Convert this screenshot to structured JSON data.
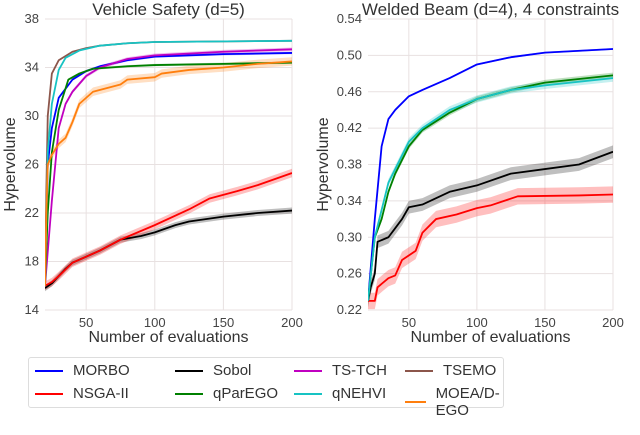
{
  "chart_data": [
    {
      "type": "line",
      "title": "Vehicle Safety (d=5)",
      "xlabel": "Number of evaluations",
      "ylabel": "Hypervolume",
      "xlim": [
        20,
        200
      ],
      "ylim": [
        14,
        38
      ],
      "xticks": [
        50,
        100,
        150,
        200
      ],
      "yticks": [
        14,
        18,
        22,
        26,
        30,
        34,
        38
      ],
      "grid": true,
      "series": [
        {
          "name": "MORBO",
          "band": 0.1,
          "points": [
            [
              20,
              16
            ],
            [
              22,
              26
            ],
            [
              25,
              29
            ],
            [
              30,
              31.5
            ],
            [
              40,
              33
            ],
            [
              50,
              33.7
            ],
            [
              60,
              34.1
            ],
            [
              80,
              34.6
            ],
            [
              100,
              34.9
            ],
            [
              150,
              35.1
            ],
            [
              200,
              35.2
            ]
          ]
        },
        {
          "name": "Sobol",
          "band": 0.25,
          "points": [
            [
              20,
              15.8
            ],
            [
              25,
              16.2
            ],
            [
              30,
              16.8
            ],
            [
              35,
              17.4
            ],
            [
              40,
              17.9
            ],
            [
              50,
              18.4
            ],
            [
              60,
              18.9
            ],
            [
              75,
              19.8
            ],
            [
              90,
              20.1
            ],
            [
              100,
              20.4
            ],
            [
              115,
              21
            ],
            [
              125,
              21.3
            ],
            [
              150,
              21.7
            ],
            [
              175,
              22
            ],
            [
              200,
              22.2
            ]
          ]
        },
        {
          "name": "TS-TCH",
          "band": 0.15,
          "points": [
            [
              20,
              16
            ],
            [
              25,
              23
            ],
            [
              30,
              29
            ],
            [
              35,
              31
            ],
            [
              40,
              32
            ],
            [
              50,
              33.3
            ],
            [
              60,
              34
            ],
            [
              80,
              34.7
            ],
            [
              100,
              35
            ],
            [
              150,
              35.3
            ],
            [
              200,
              35.5
            ]
          ]
        },
        {
          "name": "TSEMO",
          "band": 0.05,
          "points": [
            [
              20,
              16
            ],
            [
              21,
              24
            ],
            [
              22,
              30
            ],
            [
              25,
              33.5
            ],
            [
              30,
              34.6
            ],
            [
              40,
              35.3
            ],
            [
              50,
              35.6
            ],
            [
              60,
              35.8
            ],
            [
              80,
              36
            ],
            [
              100,
              36.1
            ],
            [
              200,
              36.2
            ]
          ]
        },
        {
          "name": "NSGA-II",
          "band": 0.35,
          "points": [
            [
              20,
              16
            ],
            [
              25,
              16.3
            ],
            [
              30,
              16.8
            ],
            [
              40,
              17.9
            ],
            [
              50,
              18.4
            ],
            [
              60,
              18.9
            ],
            [
              75,
              19.8
            ],
            [
              100,
              21
            ],
            [
              125,
              22.3
            ],
            [
              140,
              23.2
            ],
            [
              160,
              23.8
            ],
            [
              175,
              24.3
            ],
            [
              200,
              25.3
            ]
          ]
        },
        {
          "name": "qParEGO",
          "band": 0.1,
          "points": [
            [
              20,
              16
            ],
            [
              22,
              22
            ],
            [
              25,
              27
            ],
            [
              30,
              30.5
            ],
            [
              37,
              33
            ],
            [
              45,
              33.5
            ],
            [
              55,
              33.9
            ],
            [
              80,
              34.1
            ],
            [
              100,
              34.2
            ],
            [
              150,
              34.3
            ],
            [
              200,
              34.4
            ]
          ]
        },
        {
          "name": "qNEHVI",
          "band": 0.05,
          "points": [
            [
              20,
              16
            ],
            [
              22,
              27
            ],
            [
              25,
              31
            ],
            [
              30,
              33.8
            ],
            [
              35,
              34.8
            ],
            [
              45,
              35.4
            ],
            [
              60,
              35.8
            ],
            [
              80,
              36
            ],
            [
              100,
              36.1
            ],
            [
              200,
              36.2
            ]
          ]
        },
        {
          "name": "MOEA/D-EGO",
          "band": 0.35,
          "points": [
            [
              20,
              16
            ],
            [
              21,
              22
            ],
            [
              22,
              26
            ],
            [
              25,
              26.8
            ],
            [
              30,
              27.7
            ],
            [
              35,
              28.2
            ],
            [
              40,
              29.5
            ],
            [
              45,
              31
            ],
            [
              55,
              32
            ],
            [
              65,
              32.3
            ],
            [
              75,
              32.6
            ],
            [
              80,
              33
            ],
            [
              100,
              33.2
            ],
            [
              105,
              33.5
            ],
            [
              125,
              33.8
            ],
            [
              150,
              34
            ],
            [
              175,
              34.3
            ],
            [
              200,
              34.5
            ]
          ]
        }
      ]
    },
    {
      "type": "line",
      "title": "Welded Beam (d=4), 4 constraints",
      "xlabel": "Number of evaluations",
      "ylabel": "Hypervolume",
      "xlim": [
        20,
        200
      ],
      "ylim": [
        0.22,
        0.54
      ],
      "xticks": [
        50,
        100,
        150,
        200
      ],
      "yticks": [
        0.22,
        0.26,
        0.3,
        0.34,
        0.38,
        0.42,
        0.46,
        0.5,
        0.54
      ],
      "grid": true,
      "series": [
        {
          "name": "MORBO",
          "band": 0.001,
          "points": [
            [
              20,
              0.23
            ],
            [
              25,
              0.32
            ],
            [
              30,
              0.4
            ],
            [
              35,
              0.43
            ],
            [
              40,
              0.44
            ],
            [
              50,
              0.455
            ],
            [
              60,
              0.462
            ],
            [
              80,
              0.475
            ],
            [
              100,
              0.49
            ],
            [
              125,
              0.498
            ],
            [
              150,
              0.503
            ],
            [
              200,
              0.507
            ]
          ]
        },
        {
          "name": "Sobol",
          "band": 0.007,
          "points": [
            [
              20,
              0.23
            ],
            [
              22,
              0.245
            ],
            [
              25,
              0.26
            ],
            [
              27,
              0.295
            ],
            [
              35,
              0.3
            ],
            [
              40,
              0.31
            ],
            [
              45,
              0.32
            ],
            [
              50,
              0.333
            ],
            [
              60,
              0.336
            ],
            [
              80,
              0.35
            ],
            [
              100,
              0.357
            ],
            [
              125,
              0.37
            ],
            [
              150,
              0.375
            ],
            [
              175,
              0.38
            ],
            [
              200,
              0.394
            ]
          ]
        },
        {
          "name": "NSGA-II",
          "band": 0.009,
          "points": [
            [
              20,
              0.23
            ],
            [
              25,
              0.23
            ],
            [
              27,
              0.245
            ],
            [
              35,
              0.255
            ],
            [
              40,
              0.258
            ],
            [
              45,
              0.275
            ],
            [
              55,
              0.285
            ],
            [
              60,
              0.305
            ],
            [
              70,
              0.32
            ],
            [
              85,
              0.325
            ],
            [
              100,
              0.332
            ],
            [
              110,
              0.335
            ],
            [
              130,
              0.345
            ],
            [
              175,
              0.346
            ],
            [
              200,
              0.347
            ]
          ]
        },
        {
          "name": "qParEGO",
          "band": 0.003,
          "points": [
            [
              20,
              0.23
            ],
            [
              25,
              0.3
            ],
            [
              30,
              0.32
            ],
            [
              35,
              0.35
            ],
            [
              40,
              0.37
            ],
            [
              50,
              0.4
            ],
            [
              60,
              0.418
            ],
            [
              80,
              0.437
            ],
            [
              100,
              0.452
            ],
            [
              125,
              0.462
            ],
            [
              150,
              0.47
            ],
            [
              200,
              0.478
            ]
          ]
        },
        {
          "name": "qNEHVI",
          "band": 0.004,
          "points": [
            [
              20,
              0.23
            ],
            [
              25,
              0.3
            ],
            [
              30,
              0.33
            ],
            [
              35,
              0.36
            ],
            [
              40,
              0.375
            ],
            [
              50,
              0.405
            ],
            [
              60,
              0.42
            ],
            [
              80,
              0.44
            ],
            [
              100,
              0.452
            ],
            [
              125,
              0.462
            ],
            [
              150,
              0.467
            ],
            [
              200,
              0.475
            ]
          ]
        }
      ]
    }
  ],
  "legend": {
    "placement": "bottom",
    "items": [
      {
        "name": "MORBO",
        "color": "#0000ff"
      },
      {
        "name": "Sobol",
        "color": "#000000"
      },
      {
        "name": "TS-TCH",
        "color": "#c000c0"
      },
      {
        "name": "TSEMO",
        "color": "#8c564b"
      },
      {
        "name": "NSGA-II",
        "color": "#ff0000"
      },
      {
        "name": "qParEGO",
        "color": "#008000"
      },
      {
        "name": "qNEHVI",
        "color": "#17c3c3"
      },
      {
        "name": "MOEA/D-EGO",
        "color": "#ff7f0e"
      }
    ]
  }
}
